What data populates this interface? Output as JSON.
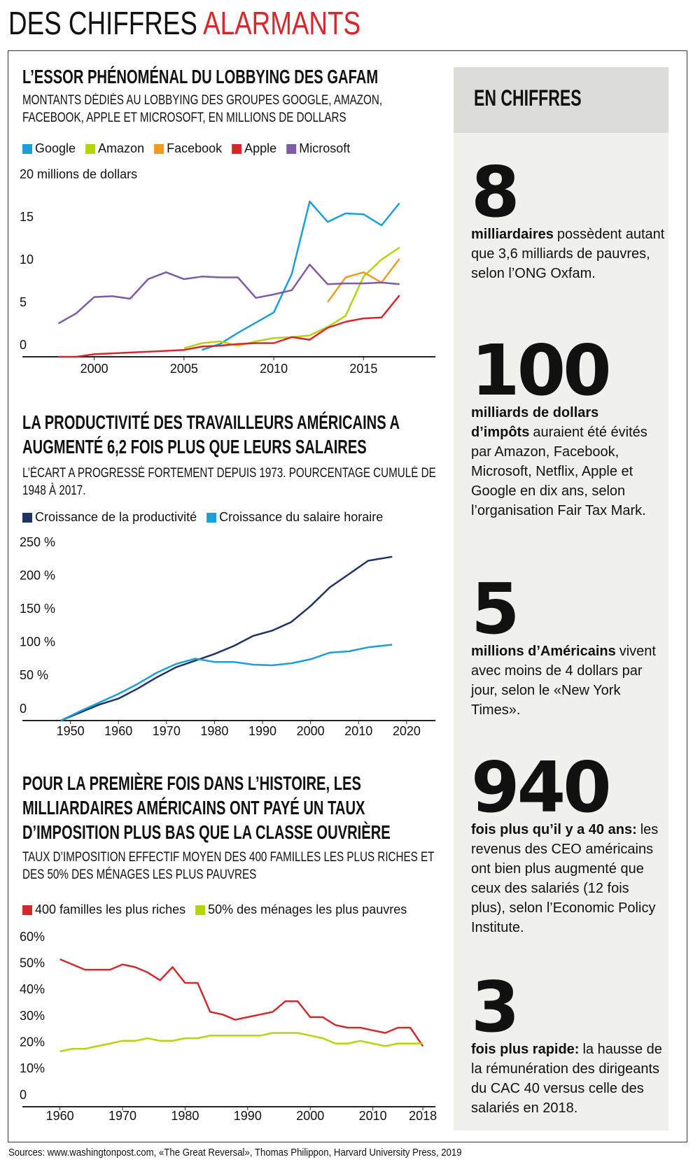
{
  "header": {
    "title_black": "DES CHIFFRES",
    "title_red": "ALARMANTS"
  },
  "chart_data": [
    {
      "type": "line",
      "title": "L’ESSOR PHÉNOMÉNAL DU LOBBYING DES GAFAM",
      "subtitle": "MONTANTS DÉDIÉS AU LOBBYING DES GROUPES GOOGLE, AMAZON, FACEBOOK, APPLE ET MICROSOFT, EN MILLIONS DE DOLLARS",
      "x": [
        1998,
        1999,
        2000,
        2001,
        2002,
        2003,
        2004,
        2005,
        2006,
        2007,
        2008,
        2009,
        2010,
        2011,
        2012,
        2013,
        2014,
        2015,
        2016,
        2017
      ],
      "series": [
        {
          "name": "Google",
          "color": "#1a9fd6",
          "values": [
            null,
            null,
            null,
            null,
            null,
            null,
            null,
            null,
            0.8,
            1.5,
            2.8,
            4.0,
            5.2,
            9.7,
            18.2,
            15.8,
            16.8,
            16.7,
            15.4,
            18.0
          ]
        },
        {
          "name": "Amazon",
          "color": "#b5d40b",
          "values": [
            null,
            null,
            null,
            null,
            null,
            null,
            null,
            1.0,
            1.6,
            1.8,
            1.3,
            1.8,
            2.2,
            2.3,
            2.5,
            3.5,
            4.8,
            9.4,
            11.4,
            12.8
          ]
        },
        {
          "name": "Facebook",
          "color": "#f39a1e",
          "values": [
            null,
            null,
            null,
            null,
            null,
            null,
            null,
            null,
            null,
            null,
            null,
            null,
            null,
            null,
            null,
            6.4,
            9.3,
            9.9,
            8.7,
            11.5
          ]
        },
        {
          "name": "Apple",
          "color": "#d9262b",
          "values": [
            0,
            0,
            0.3,
            0.4,
            0.5,
            0.6,
            0.7,
            0.8,
            1.2,
            1.3,
            1.5,
            1.6,
            1.6,
            2.3,
            2.0,
            3.4,
            4.1,
            4.5,
            4.6,
            7.2
          ]
        },
        {
          "name": "Microsoft",
          "color": "#7f5aa8",
          "values": [
            3.9,
            5.1,
            7.0,
            7.1,
            6.8,
            9.1,
            9.9,
            9.1,
            9.4,
            9.3,
            9.3,
            6.9,
            7.3,
            7.8,
            10.8,
            8.5,
            8.6,
            8.6,
            8.7,
            8.5
          ]
        }
      ],
      "xlim": [
        1996,
        2019
      ],
      "xticks": [
        2000,
        2005,
        2010,
        2015
      ],
      "ylim": [
        0,
        20
      ],
      "yticks": [
        0,
        5,
        10,
        15,
        {
          "value": 20,
          "label": "20 millions de dollars"
        }
      ],
      "grid": false
    },
    {
      "type": "line",
      "title": "LA PRODUCTIVITÉ DES TRAVAILLEURS AMÉRICAINS A AUGMENTÉ 6,2 FOIS PLUS QUE LEURS SALAIRES",
      "subtitle": "L’ÉCART A PROGRESSÉ FORTEMENT DEPUIS 1973. POURCENTAGE CUMULÉ DE 1948 À 2017.",
      "x": [
        1948,
        1952,
        1956,
        1960,
        1964,
        1968,
        1972,
        1976,
        1980,
        1984,
        1988,
        1992,
        1996,
        2000,
        2004,
        2008,
        2012,
        2017
      ],
      "series": [
        {
          "name": "Croissance de la productivité",
          "color": "#1f3464",
          "values": [
            0,
            12,
            24,
            33,
            48,
            65,
            80,
            90,
            100,
            112,
            127,
            135,
            148,
            172,
            200,
            220,
            240,
            246
          ]
        },
        {
          "name": "Croissance du salaire horaire",
          "color": "#1a9fd6",
          "values": [
            0,
            14,
            27,
            40,
            55,
            72,
            85,
            93,
            88,
            88,
            84,
            83,
            86,
            92,
            102,
            104,
            110,
            114
          ]
        }
      ],
      "xlim": [
        1940,
        2026
      ],
      "xticks": [
        1950,
        1960,
        1970,
        1980,
        1990,
        2000,
        2010,
        2020
      ],
      "ylim": [
        0,
        250
      ],
      "yticks": [
        0,
        {
          "value": 50,
          "label": "50 %"
        },
        {
          "value": 100,
          "label": "100 %"
        },
        {
          "value": 150,
          "label": "150 %"
        },
        {
          "value": 200,
          "label": "200 %"
        },
        {
          "value": 250,
          "label": "250 %"
        }
      ],
      "grid": false
    },
    {
      "type": "line",
      "title": "POUR LA PREMIÈRE FOIS DANS L’HISTOIRE, LES MILLIARDAIRES AMÉRICAINS ONT PAYÉ UN TAUX D’IMPOSITION PLUS BAS QUE LA CLASSE OUVRIÈRE",
      "subtitle": "TAUX D’IMPOSITION EFFECTIF MOYEN DES 400 FAMILLES LES PLUS RICHES ET DES 50% DES MÉNAGES LES PLUS PAUVRES",
      "x": [
        1960,
        1962,
        1964,
        1966,
        1968,
        1970,
        1972,
        1974,
        1976,
        1978,
        1980,
        1982,
        1984,
        1986,
        1988,
        1990,
        1992,
        1994,
        1996,
        1998,
        2000,
        2002,
        2004,
        2006,
        2008,
        2010,
        2012,
        2014,
        2016,
        2018
      ],
      "series": [
        {
          "name": "400 familles les plus riches",
          "color": "#d02a2b",
          "values": [
            56,
            54,
            52,
            52,
            52,
            54,
            53,
            51,
            48,
            53,
            47,
            47,
            36,
            35,
            33,
            34,
            35,
            36,
            40,
            40,
            34,
            34,
            31,
            30,
            30,
            29,
            28,
            30,
            30,
            23
          ]
        },
        {
          "name": "50% des ménages les plus pauvres",
          "color": "#b5d40b",
          "values": [
            21,
            22,
            22,
            23,
            24,
            25,
            25,
            26,
            25,
            25,
            26,
            26,
            27,
            27,
            27,
            27,
            27,
            28,
            28,
            28,
            27,
            26,
            24,
            24,
            25,
            24,
            23,
            24,
            24,
            24
          ]
        }
      ],
      "xlim": [
        1954,
        2020
      ],
      "xticks": [
        1960,
        1970,
        1980,
        1990,
        2000,
        2010,
        2018
      ],
      "ylim": [
        0,
        60
      ],
      "yticks": [
        0,
        {
          "value": 10,
          "label": "10%"
        },
        {
          "value": 20,
          "label": "20%"
        },
        {
          "value": 30,
          "label": "30%"
        },
        {
          "value": 40,
          "label": "40%"
        },
        {
          "value": 50,
          "label": "50%"
        },
        {
          "value": 60,
          "label": "60%"
        }
      ],
      "grid": false
    }
  ],
  "sidebar": {
    "title": "EN CHIFFRES",
    "items": [
      {
        "number": "8",
        "bold": "milliardaires",
        "text": "possèdent autant que 3,6 milliards de pauvres, selon l’ONG Oxfam."
      },
      {
        "number": "100",
        "bold": "milliards de dollars d’impôts",
        "text": "auraient été évités par Amazon, Facebook, Microsoft, Netflix, Apple et Google en dix ans, selon l’organisation Fair Tax Mark."
      },
      {
        "number": "5",
        "bold": "millions d’Américains",
        "text": "vivent avec moins de 4 dollars par jour, selon le «New York Times»."
      },
      {
        "number": "940",
        "bold": "fois plus qu’il y a 40 ans:",
        "text": "les revenus des CEO américains ont bien plus augmenté que ceux des salariés (12 fois plus), selon l’Economic Policy Institute."
      },
      {
        "number": "3",
        "bold": "fois plus rapide:",
        "text": "la hausse de la rémunération des dirigeants du CAC 40 versus celle des salariés en 2018."
      }
    ]
  },
  "source": "Sources: www.washingtonpost.com, «The Great Reversal», Thomas Philippon, Harvard University Press, 2019"
}
